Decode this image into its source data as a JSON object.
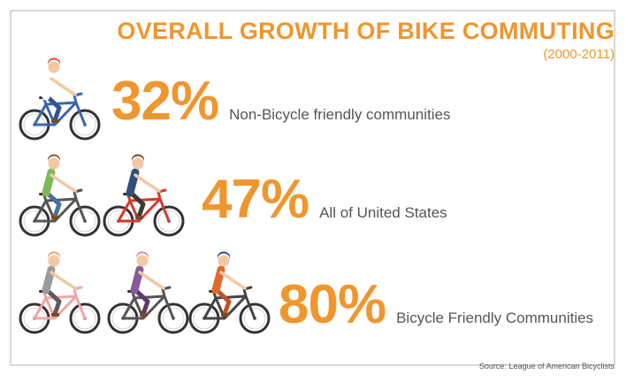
{
  "colors": {
    "accent": "#f0962e",
    "text": "#555555",
    "border": "#d9d9d9"
  },
  "header": {
    "title": "OVERALL GROWTH OF BIKE COMMUTING",
    "subtitle": "(2000-2011)"
  },
  "rows": [
    {
      "value": "32%",
      "label": "Non-Bicycle friendly communities"
    },
    {
      "value": "47%",
      "label": "All of United States"
    },
    {
      "value": "80%",
      "label": "Bicycle Friendly Communities"
    }
  ],
  "source": "Source: League of American Bicyclists",
  "chart_data": {
    "type": "table",
    "title": "OVERALL GROWTH OF BIKE COMMUTING",
    "subtitle": "(2000-2011)",
    "categories": [
      "Non-Bicycle friendly communities",
      "All of United States",
      "Bicycle Friendly Communities"
    ],
    "values": [
      32,
      47,
      80
    ],
    "unit": "%"
  },
  "illustrations": [
    {
      "icon": "cyclist-red-hair-icon",
      "bike_color": "#3a67b0",
      "top": "#ffffff",
      "bottom": "#2f5597",
      "hair": "#e0532a"
    },
    {
      "icon": "cyclist-hat-man-icon",
      "bike_color": "#555555",
      "top": "#7fb85a",
      "bottom": "#4d6f9a",
      "hair": "#7a5a3a"
    },
    {
      "icon": "cyclist-vest-man-icon",
      "bike_color": "#d23a2a",
      "top": "#2f4f7a",
      "bottom": "#3a3a3a",
      "hair": "#6b4423"
    },
    {
      "icon": "cyclist-pink-bike-woman-icon",
      "bike_color": "#f1a5a5",
      "top": "#9a9a9a",
      "bottom": "#5c5c5c",
      "hair": "#e8a070"
    },
    {
      "icon": "cyclist-helmet-woman-icon",
      "bike_color": "#555555",
      "top": "#8a5a9a",
      "bottom": "#5a3a6a",
      "hair": "#e08aa0"
    },
    {
      "icon": "cyclist-racer-icon",
      "bike_color": "#444444",
      "top": "#e06a2a",
      "bottom": "#c0502a",
      "hair": "#2a4a8a"
    }
  ]
}
